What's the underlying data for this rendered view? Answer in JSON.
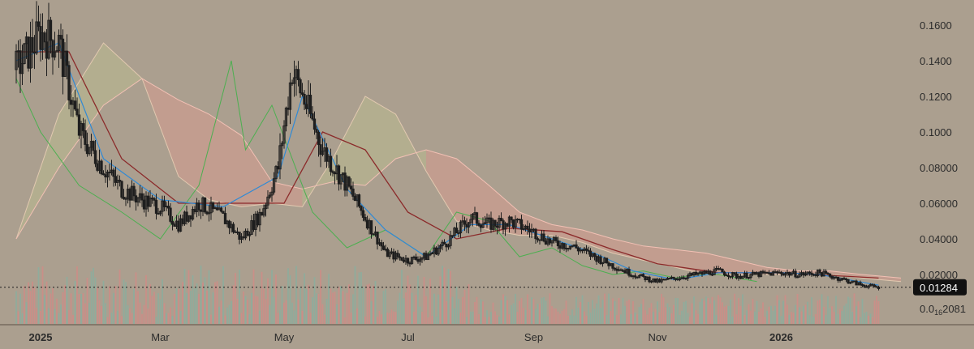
{
  "colors": {
    "background": "#ab9f8f",
    "candle": "#1e1e1e",
    "kumo_bearish": "#d69a8f",
    "kumo_bullish": "#b9b98f",
    "span_a": "#e2c9b0",
    "span_b": "#f2c0b4",
    "lagging_span": "#4caf50",
    "base_line": "#8b2a2a",
    "conversion_line": "#2f8ad6",
    "volume_up": "#86b0a0",
    "volume_down": "#d48a86",
    "price_line": "#1e1e1e",
    "price_tag_bg": "#111111"
  },
  "chart_data": {
    "type": "line",
    "subtype": "candlestick-with-ichimoku-and-volume",
    "title": "",
    "xlabel": "",
    "ylabel": "",
    "ylim": [
      0.0,
      0.165
    ],
    "grid": false,
    "y_ticks": [
      "0.1600",
      "0.1400",
      "0.1200",
      "0.1000",
      "0.08000",
      "0.06000",
      "0.04000",
      "0.02000"
    ],
    "x_ticks": [
      {
        "label": "2025",
        "date": "2025-01",
        "bold": true
      },
      {
        "label": "Mar",
        "date": "2025-03",
        "bold": false
      },
      {
        "label": "May",
        "date": "2025-05",
        "bold": false
      },
      {
        "label": "Jul",
        "date": "2025-07",
        "bold": false
      },
      {
        "label": "Sep",
        "date": "2025-09",
        "bold": false
      },
      {
        "label": "Nov",
        "date": "2025-11",
        "bold": false
      },
      {
        "label": "2026",
        "date": "2026-01",
        "bold": true
      }
    ],
    "last_price": "0.01284",
    "last_price_value": 0.01284,
    "volume_label_prefix": "0.0",
    "volume_label_sub": "16",
    "volume_label_suffix": "2081",
    "price_series": {
      "x": [
        "2024-12-20",
        "2025-01-01",
        "2025-01-10",
        "2025-01-20",
        "2025-02-01",
        "2025-02-10",
        "2025-02-20",
        "2025-03-01",
        "2025-03-10",
        "2025-03-20",
        "2025-04-01",
        "2025-04-10",
        "2025-04-20",
        "2025-04-28",
        "2025-05-05",
        "2025-05-12",
        "2025-05-20",
        "2025-06-01",
        "2025-06-10",
        "2025-06-20",
        "2025-07-01",
        "2025-07-10",
        "2025-07-20",
        "2025-08-01",
        "2025-08-10",
        "2025-08-20",
        "2025-09-01",
        "2025-09-10",
        "2025-09-20",
        "2025-10-01",
        "2025-10-10",
        "2025-10-20",
        "2025-11-01",
        "2025-11-10",
        "2025-11-20",
        "2025-12-01",
        "2025-12-10",
        "2025-12-20",
        "2026-01-01",
        "2026-01-10",
        "2026-01-20",
        "2026-02-01",
        "2026-02-10",
        "2026-02-18"
      ],
      "close": [
        0.135,
        0.155,
        0.15,
        0.1,
        0.08,
        0.068,
        0.062,
        0.058,
        0.048,
        0.06,
        0.052,
        0.04,
        0.055,
        0.08,
        0.135,
        0.115,
        0.09,
        0.07,
        0.052,
        0.032,
        0.028,
        0.03,
        0.038,
        0.052,
        0.048,
        0.05,
        0.044,
        0.038,
        0.036,
        0.03,
        0.025,
        0.02,
        0.016,
        0.018,
        0.02,
        0.022,
        0.019,
        0.02,
        0.021,
        0.02,
        0.021,
        0.017,
        0.014,
        0.01284
      ]
    },
    "base_line": {
      "x": [
        "2024-12-20",
        "2025-01-15",
        "2025-02-10",
        "2025-03-10",
        "2025-04-10",
        "2025-05-01",
        "2025-05-20",
        "2025-06-10",
        "2025-07-01",
        "2025-07-25",
        "2025-08-20",
        "2025-09-15",
        "2025-10-10",
        "2025-11-01",
        "2025-12-01",
        "2026-01-01",
        "2026-02-18"
      ],
      "values": [
        0.145,
        0.145,
        0.085,
        0.06,
        0.06,
        0.06,
        0.1,
        0.09,
        0.055,
        0.04,
        0.046,
        0.044,
        0.034,
        0.026,
        0.021,
        0.021,
        0.018
      ]
    },
    "conversion_line": {
      "x": [
        "2024-12-20",
        "2025-01-10",
        "2025-02-01",
        "2025-03-01",
        "2025-04-01",
        "2025-04-28",
        "2025-05-10",
        "2025-06-01",
        "2025-06-20",
        "2025-07-10",
        "2025-08-01",
        "2025-08-20",
        "2025-09-10",
        "2025-10-01",
        "2025-10-20",
        "2025-11-10",
        "2025-12-01",
        "2026-01-01",
        "2026-01-20",
        "2026-02-18"
      ],
      "values": [
        0.14,
        0.15,
        0.085,
        0.062,
        0.058,
        0.075,
        0.12,
        0.068,
        0.045,
        0.03,
        0.048,
        0.048,
        0.04,
        0.032,
        0.022,
        0.017,
        0.021,
        0.021,
        0.02,
        0.014
      ]
    },
    "lagging_span": {
      "x": [
        "2024-12-20",
        "2025-01-01",
        "2025-01-20",
        "2025-02-10",
        "2025-03-01",
        "2025-03-20",
        "2025-04-05",
        "2025-04-12",
        "2025-04-25",
        "2025-05-15",
        "2025-06-01",
        "2025-06-20",
        "2025-07-10",
        "2025-07-25",
        "2025-08-10",
        "2025-08-25",
        "2025-09-10",
        "2025-09-25",
        "2025-10-10",
        "2025-10-25",
        "2025-11-10",
        "2025-11-20",
        "2025-12-01",
        "2025-12-20"
      ],
      "values": [
        0.13,
        0.1,
        0.07,
        0.055,
        0.04,
        0.07,
        0.14,
        0.09,
        0.115,
        0.055,
        0.035,
        0.045,
        0.03,
        0.055,
        0.05,
        0.03,
        0.035,
        0.025,
        0.02,
        0.022,
        0.018,
        0.02,
        0.02,
        0.016
      ]
    },
    "kumo": {
      "x": [
        "2024-12-20",
        "2025-01-10",
        "2025-02-01",
        "2025-02-20",
        "2025-03-10",
        "2025-03-25",
        "2025-04-10",
        "2025-04-25",
        "2025-05-10",
        "2025-05-25",
        "2025-06-10",
        "2025-06-25",
        "2025-07-10",
        "2025-07-25",
        "2025-08-10",
        "2025-08-25",
        "2025-09-10",
        "2025-09-25",
        "2025-10-10",
        "2025-10-25",
        "2025-11-10",
        "2025-11-25",
        "2025-12-10",
        "2025-12-25",
        "2026-01-10",
        "2026-01-25",
        "2026-02-10",
        "2026-03-01"
      ],
      "span_a": [
        0.04,
        0.11,
        0.15,
        0.13,
        0.075,
        0.062,
        0.058,
        0.06,
        0.058,
        0.085,
        0.12,
        0.11,
        0.078,
        0.05,
        0.045,
        0.042,
        0.042,
        0.038,
        0.032,
        0.028,
        0.024,
        0.02,
        0.02,
        0.02,
        0.02,
        0.02,
        0.018,
        0.016
      ],
      "span_b": [
        0.04,
        0.08,
        0.115,
        0.13,
        0.118,
        0.11,
        0.098,
        0.072,
        0.068,
        0.072,
        0.07,
        0.085,
        0.09,
        0.085,
        0.07,
        0.055,
        0.048,
        0.045,
        0.04,
        0.036,
        0.034,
        0.032,
        0.028,
        0.024,
        0.022,
        0.022,
        0.02,
        0.018
      ]
    },
    "volume": {
      "max_relative": 1.0
    }
  }
}
